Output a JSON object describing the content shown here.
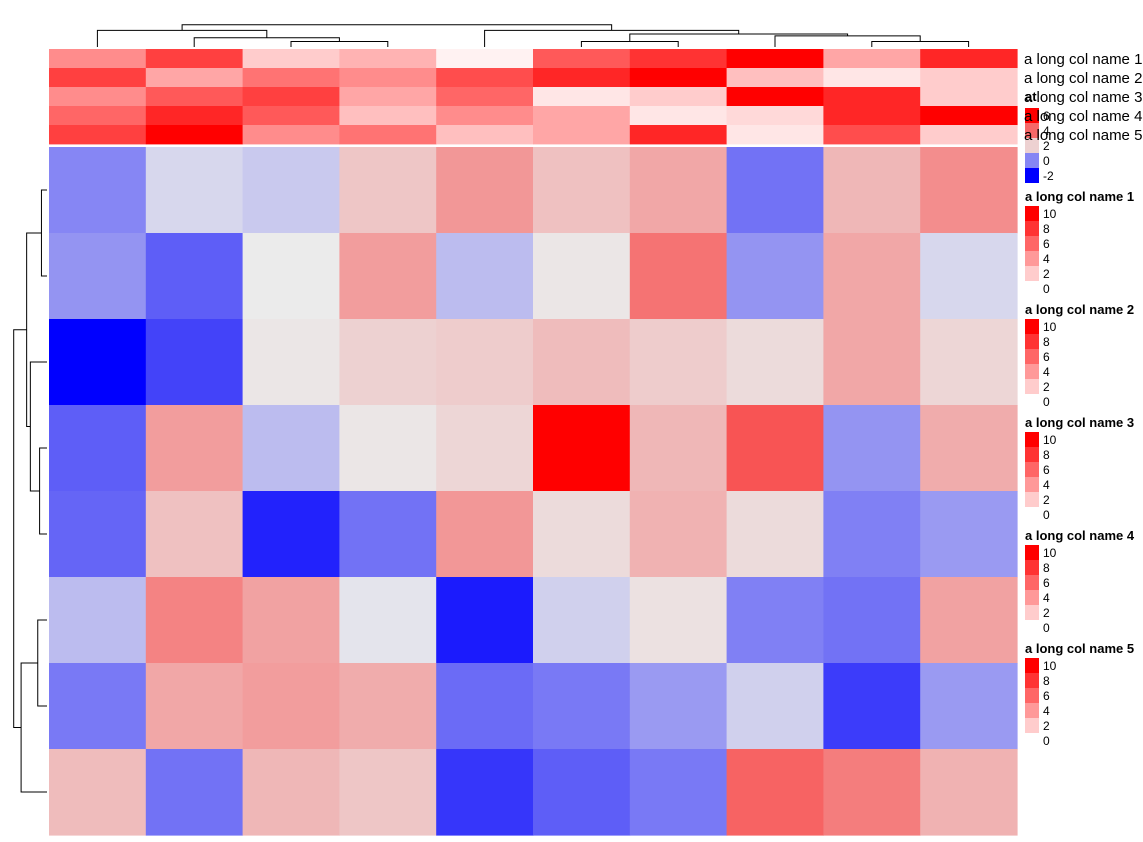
{
  "chart_data": {
    "type": "heatmap",
    "title": "",
    "xlabel": "",
    "ylabel": "",
    "rows": 8,
    "columns": 10,
    "row_order": [
      1,
      2,
      3,
      4,
      5,
      6,
      7,
      8
    ],
    "column_order": [
      1,
      2,
      3,
      4,
      5,
      6,
      7,
      8,
      9,
      10
    ],
    "body": {
      "legend_title": "at",
      "legend_breaks": [
        {
          "label": "6",
          "value": 6
        },
        {
          "label": "4",
          "value": 4
        },
        {
          "label": "2",
          "value": 2
        },
        {
          "label": "0",
          "value": 0
        },
        {
          "label": "-2",
          "value": -2
        }
      ],
      "color_stops": [
        {
          "value": -2,
          "color": "#0000ff"
        },
        {
          "value": 1.5,
          "color": "#ebebeb"
        },
        {
          "value": 6,
          "color": "#ff0000"
        }
      ],
      "values": [
        [
          0.0,
          1.2,
          1.0,
          2.2,
          3.1,
          2.3,
          2.8,
          -0.3,
          2.5,
          3.3
        ],
        [
          0.2,
          -0.6,
          1.5,
          3.0,
          0.8,
          1.6,
          3.8,
          0.2,
          2.8,
          1.2
        ],
        [
          -2.0,
          -1.0,
          1.6,
          2.0,
          2.1,
          2.4,
          2.1,
          1.8,
          2.8,
          1.9
        ],
        [
          -0.6,
          3.0,
          0.8,
          1.6,
          1.9,
          6.0,
          2.5,
          4.4,
          0.2,
          2.7
        ],
        [
          -0.5,
          2.3,
          -1.5,
          -0.3,
          3.1,
          1.8,
          2.6,
          1.8,
          -0.1,
          0.3
        ],
        [
          0.8,
          3.5,
          2.9,
          1.4,
          -1.6,
          1.1,
          1.7,
          -0.1,
          -0.3,
          2.9
        ],
        [
          -0.2,
          2.8,
          3.0,
          2.7,
          -0.4,
          -0.2,
          0.3,
          1.1,
          -1.1,
          0.3
        ],
        [
          2.4,
          -0.3,
          2.5,
          2.2,
          -1.2,
          -0.6,
          -0.2,
          4.1,
          3.6,
          2.6
        ]
      ]
    },
    "annotations": [
      {
        "name": "a long col name 1",
        "values": [
          4.5,
          7.5,
          2.0,
          3.0,
          0.5,
          6.5,
          8.0,
          10.0,
          3.5,
          8.5
        ]
      },
      {
        "name": "a long col name 2",
        "values": [
          7.5,
          3.5,
          5.5,
          4.5,
          7.0,
          8.5,
          10.0,
          2.5,
          1.0,
          2.0
        ]
      },
      {
        "name": "a long col name 3",
        "values": [
          4.5,
          6.5,
          7.5,
          3.5,
          6.0,
          1.0,
          2.0,
          10.0,
          8.5,
          2.0
        ]
      },
      {
        "name": "a long col name 4",
        "values": [
          6.0,
          8.5,
          6.5,
          2.5,
          4.5,
          3.5,
          1.0,
          1.5,
          8.5,
          10.0
        ]
      },
      {
        "name": "a long col name 5",
        "values": [
          7.5,
          10.0,
          4.5,
          5.5,
          2.5,
          3.5,
          8.5,
          1.0,
          7.0,
          2.0
        ]
      }
    ],
    "annotation_color_stops": [
      {
        "value": 0,
        "color": "#ffffff"
      },
      {
        "value": 10,
        "color": "#ff0000"
      }
    ],
    "annotation_legend_breaks": [
      {
        "label": "10",
        "value": 10
      },
      {
        "label": "8",
        "value": 8
      },
      {
        "label": "6",
        "value": 6
      },
      {
        "label": "4",
        "value": 4
      },
      {
        "label": "2",
        "value": 2
      },
      {
        "label": "0",
        "value": 0
      }
    ],
    "column_dendrogram": {
      "max_height": 10,
      "nodes": [
        {
          "left": 3,
          "right": 4,
          "height": 1.5
        },
        {
          "left": 2,
          "right": "n0",
          "height": 2.5
        },
        {
          "left": 1,
          "right": "n1",
          "height": 4.5
        },
        {
          "left": 6,
          "right": 7,
          "height": 1.5
        },
        {
          "left": 9,
          "right": 10,
          "height": 1.5
        },
        {
          "left": 8,
          "right": "n4",
          "height": 3.0
        },
        {
          "left": "n3",
          "right": "n5",
          "height": 3.5
        },
        {
          "left": 5,
          "right": "n6",
          "height": 4.5
        },
        {
          "left": "n2",
          "right": "n7",
          "height": 6.0
        }
      ]
    },
    "row_dendrogram": {
      "max_height": 10,
      "nodes": [
        {
          "left": 1,
          "right": 2,
          "height": 1.5
        },
        {
          "left": 4,
          "right": 5,
          "height": 2.0
        },
        {
          "left": 3,
          "right": "n1",
          "height": 4.5
        },
        {
          "left": "n0",
          "right": "n2",
          "height": 5.5
        },
        {
          "left": 6,
          "right": 7,
          "height": 2.5
        },
        {
          "left": "n4",
          "right": 8,
          "height": 7.0
        },
        {
          "left": "n3",
          "right": "n5",
          "height": 9.0
        }
      ]
    }
  }
}
